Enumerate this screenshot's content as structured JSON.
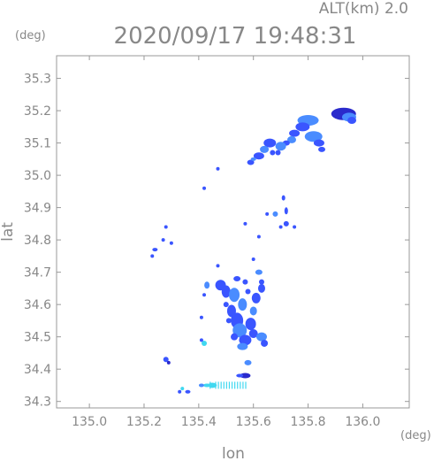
{
  "chart_data": {
    "type": "scatter",
    "title": "2020/09/17 19:48:31",
    "subtitle": "ALT(km) 2.0",
    "xlabel": "lon",
    "ylabel": "lat",
    "x_unit": "(deg)",
    "y_unit": "(deg)",
    "xlim": [
      134.88,
      136.17
    ],
    "ylim": [
      34.28,
      35.37
    ],
    "x_ticks": [
      135.0,
      135.2,
      135.4,
      135.6,
      135.8,
      136.0
    ],
    "x_tick_labels": [
      "135.0",
      "135.2",
      "135.4",
      "135.6",
      "135.8",
      "136.0"
    ],
    "y_ticks": [
      34.3,
      34.4,
      34.5,
      34.6,
      34.7,
      34.8,
      34.9,
      35.0,
      35.1,
      35.2,
      35.3
    ],
    "y_tick_labels": [
      "34.3",
      "34.4",
      "34.5",
      "34.6",
      "34.7",
      "34.8",
      "34.9",
      "35.0",
      "35.1",
      "35.2",
      "35.3"
    ],
    "grid": false,
    "colors": {
      "weak": "#3a55ff",
      "medium": "#4a8cff",
      "strong": "#40d8f0",
      "dark": "#2a2acc"
    },
    "echo_cells": [
      [
        135.93,
        35.19,
        14,
        7,
        "dark"
      ],
      [
        135.95,
        35.18,
        8,
        5,
        "medium"
      ],
      [
        135.96,
        35.17,
        5,
        4,
        "weak"
      ],
      [
        135.8,
        35.17,
        12,
        6,
        "medium"
      ],
      [
        135.78,
        35.15,
        8,
        5,
        "weak"
      ],
      [
        135.82,
        35.12,
        10,
        6,
        "medium"
      ],
      [
        135.84,
        35.1,
        6,
        4,
        "weak"
      ],
      [
        135.85,
        35.08,
        4,
        3,
        "weak"
      ],
      [
        135.75,
        35.13,
        6,
        4,
        "weak"
      ],
      [
        135.74,
        35.11,
        5,
        4,
        "medium"
      ],
      [
        135.72,
        35.1,
        4,
        3,
        "weak"
      ],
      [
        135.7,
        35.09,
        6,
        5,
        "medium"
      ],
      [
        135.66,
        35.1,
        7,
        5,
        "weak"
      ],
      [
        135.64,
        35.08,
        5,
        4,
        "medium"
      ],
      [
        135.62,
        35.06,
        6,
        4,
        "weak"
      ],
      [
        135.67,
        35.07,
        3,
        3,
        "weak"
      ],
      [
        135.69,
        35.07,
        3,
        3,
        "weak"
      ],
      [
        135.59,
        35.04,
        4,
        3,
        "weak"
      ],
      [
        135.6,
        35.05,
        3,
        2,
        "medium"
      ],
      [
        135.47,
        35.02,
        2,
        2,
        "weak"
      ],
      [
        135.42,
        34.96,
        2,
        2,
        "weak"
      ],
      [
        135.71,
        34.93,
        2,
        3,
        "weak"
      ],
      [
        135.72,
        34.89,
        2,
        4,
        "weak"
      ],
      [
        135.68,
        34.88,
        3,
        3,
        "medium"
      ],
      [
        135.72,
        34.85,
        3,
        3,
        "weak"
      ],
      [
        135.7,
        34.84,
        2,
        2,
        "weak"
      ],
      [
        135.75,
        34.84,
        2,
        2,
        "weak"
      ],
      [
        135.65,
        34.88,
        2,
        2,
        "weak"
      ],
      [
        135.62,
        34.81,
        2,
        2,
        "weak"
      ],
      [
        135.6,
        34.74,
        2,
        2,
        "weak"
      ],
      [
        135.57,
        34.85,
        2,
        2,
        "weak"
      ],
      [
        135.28,
        34.84,
        2,
        2,
        "weak"
      ],
      [
        135.27,
        34.8,
        2,
        2,
        "weak"
      ],
      [
        135.3,
        34.79,
        2,
        2,
        "weak"
      ],
      [
        135.24,
        34.77,
        3,
        2,
        "weak"
      ],
      [
        135.23,
        34.75,
        2,
        2,
        "weak"
      ],
      [
        135.47,
        34.72,
        2,
        2,
        "weak"
      ],
      [
        135.43,
        34.66,
        3,
        4,
        "medium"
      ],
      [
        135.42,
        34.63,
        2,
        2,
        "weak"
      ],
      [
        135.41,
        34.56,
        2,
        2,
        "weak"
      ],
      [
        135.42,
        34.48,
        3,
        3,
        "strong"
      ],
      [
        135.41,
        34.49,
        2,
        2,
        "weak"
      ],
      [
        135.28,
        34.43,
        3,
        3,
        "weak"
      ],
      [
        135.29,
        34.42,
        2,
        2,
        "dark"
      ],
      [
        135.48,
        34.66,
        6,
        6,
        "weak"
      ],
      [
        135.5,
        34.64,
        5,
        7,
        "weak"
      ],
      [
        135.53,
        34.63,
        6,
        8,
        "medium"
      ],
      [
        135.52,
        34.58,
        5,
        7,
        "weak"
      ],
      [
        135.54,
        34.55,
        7,
        9,
        "weak"
      ],
      [
        135.56,
        34.6,
        5,
        7,
        "medium"
      ],
      [
        135.55,
        34.52,
        8,
        8,
        "medium"
      ],
      [
        135.57,
        34.49,
        7,
        6,
        "weak"
      ],
      [
        135.59,
        34.54,
        6,
        7,
        "weak"
      ],
      [
        135.6,
        34.58,
        4,
        5,
        "medium"
      ],
      [
        135.61,
        34.62,
        5,
        6,
        "weak"
      ],
      [
        135.63,
        34.65,
        4,
        5,
        "weak"
      ],
      [
        135.62,
        34.7,
        4,
        3,
        "medium"
      ],
      [
        135.63,
        34.67,
        3,
        3,
        "weak"
      ],
      [
        135.58,
        34.64,
        3,
        3,
        "weak"
      ],
      [
        135.57,
        34.67,
        3,
        3,
        "weak"
      ],
      [
        135.54,
        34.68,
        4,
        3,
        "weak"
      ],
      [
        135.6,
        34.51,
        5,
        5,
        "weak"
      ],
      [
        135.63,
        34.5,
        6,
        5,
        "medium"
      ],
      [
        135.64,
        34.48,
        4,
        4,
        "weak"
      ],
      [
        135.56,
        34.47,
        6,
        4,
        "medium"
      ],
      [
        135.53,
        34.5,
        4,
        4,
        "weak"
      ],
      [
        135.51,
        34.55,
        3,
        3,
        "weak"
      ],
      [
        135.5,
        34.6,
        3,
        3,
        "weak"
      ],
      [
        135.58,
        34.42,
        4,
        3,
        "medium"
      ],
      [
        135.57,
        34.38,
        6,
        3,
        "dark"
      ],
      [
        135.55,
        34.38,
        4,
        2,
        "weak"
      ],
      [
        135.45,
        34.35,
        5,
        3,
        "strong"
      ],
      [
        135.43,
        34.35,
        4,
        2,
        "strong"
      ],
      [
        135.41,
        34.35,
        3,
        2,
        "medium"
      ],
      [
        135.36,
        34.33,
        3,
        2,
        "weak"
      ],
      [
        135.34,
        34.34,
        2,
        2,
        "strong"
      ],
      [
        135.33,
        34.33,
        2,
        2,
        "weak"
      ]
    ],
    "streak_lons": [
      135.44,
      135.46,
      135.47,
      135.48,
      135.49,
      135.5,
      135.51,
      135.52,
      135.53,
      135.54,
      135.55,
      135.56,
      135.57
    ],
    "streak_lat": 34.35
  }
}
